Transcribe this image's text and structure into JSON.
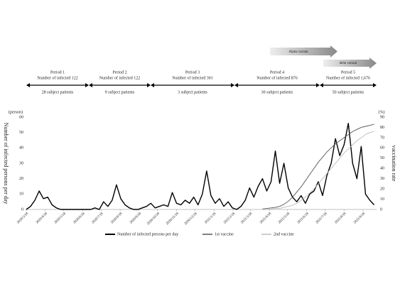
{
  "chart_data": {
    "type": "line",
    "ylabel": "Number of infected persons per day",
    "y2label": "vaccination rate",
    "yunit": "(person)",
    "y2unit": "(%)",
    "annotations": [
      "Alpha variant",
      "delta variant"
    ],
    "periods": [
      {
        "name": "Period 1",
        "infected": "Number of infected 122",
        "patients": "28 subject patients"
      },
      {
        "name": "Period 2",
        "infected": "Number of infected 122",
        "patients": "9 subject patients"
      },
      {
        "name": "Period 3",
        "infected": "Number of infected 301",
        "patients": "3 subject patients"
      },
      {
        "name": "Period 4",
        "infected": "Number of infected 876",
        "patients": "30 subject patients"
      },
      {
        "name": "Period 5",
        "infected": "Number of infected 1,676",
        "patients": "50 subject patients"
      }
    ],
    "x": [
      "2020/3/18",
      "2020/3/25",
      "2020/4/1",
      "2020/4/8",
      "2020/4/15",
      "2020/4/22",
      "2020/4/29",
      "2020/5/6",
      "2020/5/13",
      "2020/5/20",
      "2020/5/27",
      "2020/6/3",
      "2020/6/10",
      "2020/6/17",
      "2020/6/24",
      "2020/7/1",
      "2020/7/8",
      "2020/7/15",
      "2020/7/22",
      "2020/7/29",
      "2020/8/5",
      "2020/8/12",
      "2020/8/19",
      "2020/8/26",
      "2020/9/2",
      "2020/9/9",
      "2020/9/16",
      "2020/9/23",
      "2020/9/30",
      "2020/10/7",
      "2020/10/14",
      "2020/10/21",
      "2020/10/28",
      "2020/11/4",
      "2020/11/11",
      "2020/11/18",
      "2020/11/25",
      "2020/12/2",
      "2020/12/9",
      "2020/12/16",
      "2020/12/23",
      "2020/12/30",
      "2021/1/6",
      "2021/1/13",
      "2021/1/20",
      "2021/1/27",
      "2021/2/3",
      "2021/2/10",
      "2021/2/17",
      "2021/2/24",
      "2021/3/3",
      "2021/3/10",
      "2021/3/17",
      "2021/3/24",
      "2021/3/31",
      "2021/4/7",
      "2021/4/14",
      "2021/4/21",
      "2021/4/28",
      "2021/5/5",
      "2021/5/12",
      "2021/5/19",
      "2021/5/26",
      "2021/6/2",
      "2021/6/9",
      "2021/6/16",
      "2021/6/23",
      "2021/6/30",
      "2021/7/7",
      "2021/7/14",
      "2021/7/21",
      "2021/7/28",
      "2021/8/4",
      "2021/8/11",
      "2021/8/18",
      "2021/8/25",
      "2021/9/1",
      "2021/9/8",
      "2021/9/15",
      "2021/9/22",
      "2021/9/29",
      "2021/10/6"
    ],
    "series": [
      {
        "name": "Number of infected persons per day",
        "color": "#000000",
        "values": [
          0,
          2,
          6,
          12,
          7,
          8,
          3,
          1,
          0,
          0,
          0,
          0,
          0,
          0,
          0,
          0,
          1,
          0,
          5,
          2,
          6,
          16,
          7,
          3,
          1,
          0,
          0,
          1,
          2,
          4,
          1,
          2,
          3,
          2,
          11,
          4,
          3,
          6,
          4,
          8,
          3,
          10,
          25,
          9,
          4,
          7,
          2,
          5,
          1,
          0,
          2,
          6,
          14,
          8,
          15,
          20,
          12,
          18,
          38,
          17,
          30,
          14,
          8,
          5,
          9,
          4,
          10,
          12,
          18,
          9,
          22,
          30,
          46,
          35,
          42,
          56,
          30,
          20,
          41,
          10,
          6,
          3
        ]
      },
      {
        "name": "1st vaccine",
        "color": "#555555",
        "axis": "y2",
        "values": [
          null,
          null,
          null,
          null,
          null,
          null,
          null,
          null,
          null,
          null,
          null,
          null,
          null,
          null,
          null,
          null,
          null,
          null,
          null,
          null,
          null,
          null,
          null,
          null,
          null,
          null,
          null,
          null,
          null,
          null,
          null,
          null,
          null,
          null,
          null,
          null,
          null,
          null,
          null,
          null,
          null,
          null,
          null,
          null,
          null,
          null,
          null,
          null,
          null,
          null,
          null,
          null,
          null,
          null,
          null,
          0.5,
          1,
          1.5,
          2,
          3,
          5,
          8,
          12,
          17,
          22,
          28,
          34,
          40,
          46,
          51,
          56,
          60,
          64,
          67,
          70,
          73,
          76,
          78,
          80,
          81,
          82,
          83
        ]
      },
      {
        "name": "2nd vaccine",
        "color": "#bbbbbb",
        "axis": "y2",
        "values": [
          null,
          null,
          null,
          null,
          null,
          null,
          null,
          null,
          null,
          null,
          null,
          null,
          null,
          null,
          null,
          null,
          null,
          null,
          null,
          null,
          null,
          null,
          null,
          null,
          null,
          null,
          null,
          null,
          null,
          null,
          null,
          null,
          null,
          null,
          null,
          null,
          null,
          null,
          null,
          null,
          null,
          null,
          null,
          null,
          null,
          null,
          null,
          null,
          null,
          null,
          null,
          null,
          null,
          null,
          null,
          0,
          0,
          0.5,
          1,
          1,
          2,
          3,
          4,
          6,
          9,
          12,
          16,
          20,
          25,
          30,
          35,
          40,
          45,
          50,
          55,
          59,
          63,
          67,
          70,
          73,
          75,
          76
        ]
      }
    ],
    "xlim": [
      "2020/3/18",
      "2021/10/10"
    ],
    "xticks": [
      "2020/3/18",
      "2020/4/18",
      "2020/5/18",
      "2020/6/18",
      "2020/7/18",
      "2020/8/18",
      "2020/9/18",
      "2020/10/18",
      "2020/11/18",
      "2020/12/18",
      "2021/1/18",
      "2021/2/18",
      "2021/3/18",
      "2021/4/18",
      "2021/5/18",
      "2021/6/18",
      "2021/7/18",
      "2021/8/18",
      "2021/9/18"
    ],
    "ylim": [
      0,
      60
    ],
    "yticks": [
      0,
      10,
      20,
      30,
      40,
      50,
      60
    ],
    "y2lim": [
      0,
      90
    ],
    "y2ticks": [
      0,
      10,
      20,
      30,
      40,
      50,
      60,
      70,
      80,
      90
    ],
    "grid": false
  }
}
